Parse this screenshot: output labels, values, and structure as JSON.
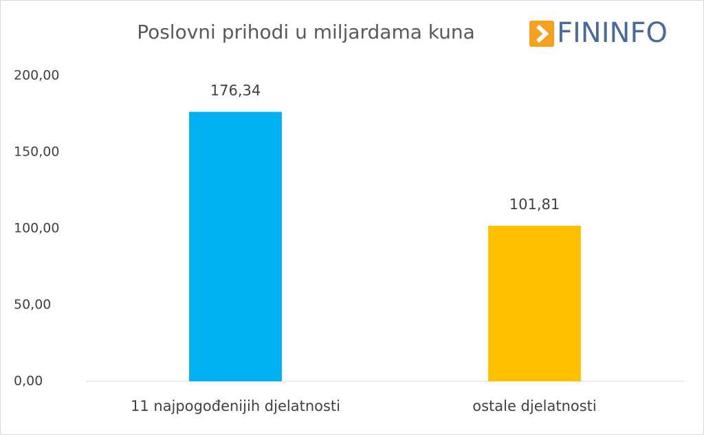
{
  "chart_data": {
    "type": "bar",
    "title": "Poslovni prihodi u miljardama kuna",
    "logo": "FININFO",
    "categories": [
      "11 najpogođenijih djelatnosti",
      "ostale djelatnosti"
    ],
    "values": [
      176.34,
      101.81
    ],
    "value_labels": [
      "176,34",
      "101,81"
    ],
    "colors": [
      "#00b0f0",
      "#ffc000"
    ],
    "ylim": [
      0,
      200
    ],
    "yticks": [
      {
        "value": 0,
        "label": "0,00"
      },
      {
        "value": 50,
        "label": "50,00"
      },
      {
        "value": 100,
        "label": "100,00"
      },
      {
        "value": 150,
        "label": "150,00"
      },
      {
        "value": 200,
        "label": "200,00"
      }
    ],
    "grid": false
  }
}
